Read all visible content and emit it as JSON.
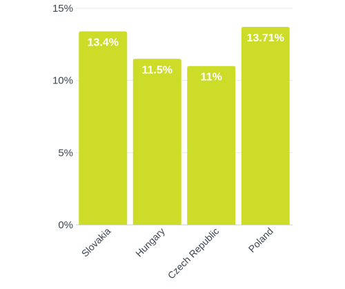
{
  "chart_data": {
    "type": "bar",
    "categories": [
      "Slovakia",
      "Hungary",
      "Czech Republic",
      "Poland"
    ],
    "values": [
      13.4,
      11.5,
      11,
      13.71
    ],
    "data_labels": [
      "13.4%",
      "11.5%",
      "11%",
      "13.71%"
    ],
    "ylim": [
      0,
      15
    ],
    "yticks": [
      0,
      5,
      10,
      15
    ],
    "ytick_labels": [
      "0%",
      "5%",
      "10%",
      "15%"
    ],
    "grid": true,
    "bar_color": "#cddc29",
    "title": "",
    "xlabel": "",
    "ylabel": ""
  }
}
